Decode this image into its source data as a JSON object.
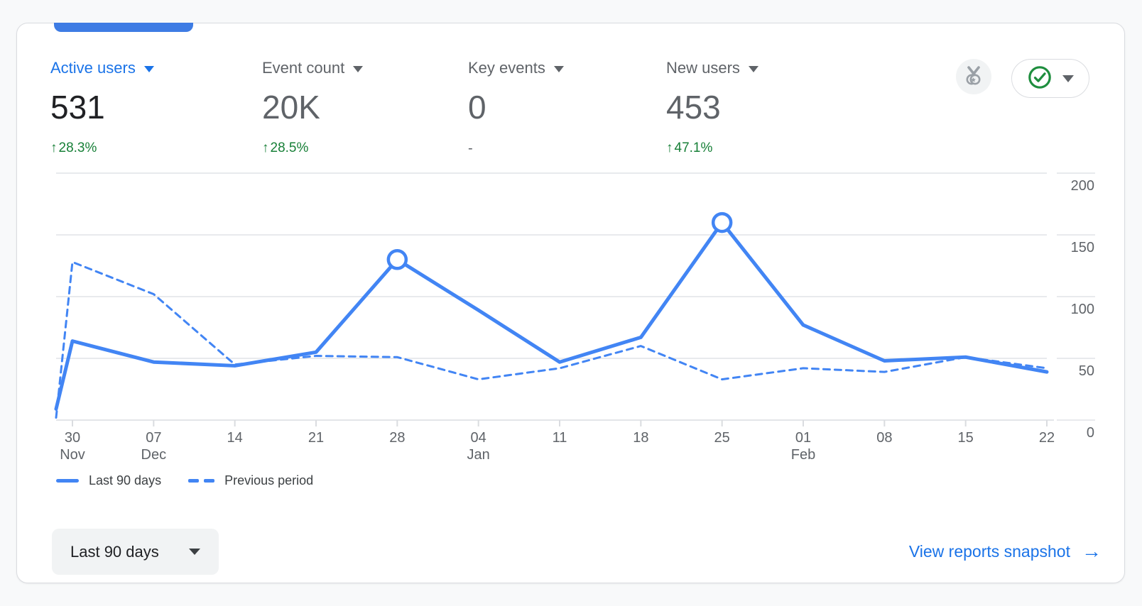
{
  "colors": {
    "page_bg": "#f8f9fa",
    "card_bg": "#ffffff",
    "border": "#dadce0",
    "tab_indicator": "#3e7ce4",
    "accent_blue": "#1a73e8",
    "chart_blue": "#4285f4",
    "positive_green": "#188038",
    "label_gray": "#5f6368",
    "value_dark": "#202124",
    "grid_gray": "#e8eaed"
  },
  "metrics": [
    {
      "label": "Active users",
      "value": "531",
      "delta_arrow": "↑",
      "delta": "28.3%",
      "selected": true
    },
    {
      "label": "Event count",
      "value": "20K",
      "delta_arrow": "↑",
      "delta": "28.5%",
      "selected": false
    },
    {
      "label": "Key events",
      "value": "0",
      "delta_arrow": "",
      "delta": "-",
      "selected": false
    },
    {
      "label": "New users",
      "value": "453",
      "delta_arrow": "↑",
      "delta": "47.1%",
      "selected": false
    }
  ],
  "chart_data": {
    "type": "line",
    "title": "",
    "xlabel": "",
    "ylabel": "",
    "ylim": [
      0,
      200
    ],
    "yticks": [
      0,
      50,
      100,
      150,
      200
    ],
    "grid": "horizontal",
    "legend_position": "bottom-left",
    "categories": [
      {
        "day": "30",
        "month": "Nov"
      },
      {
        "day": "07",
        "month": "Dec"
      },
      {
        "day": "14"
      },
      {
        "day": "21"
      },
      {
        "day": "28"
      },
      {
        "day": "04",
        "month": "Jan"
      },
      {
        "day": "11"
      },
      {
        "day": "18"
      },
      {
        "day": "25"
      },
      {
        "day": "01",
        "month": "Feb"
      },
      {
        "day": "08"
      },
      {
        "day": "15"
      },
      {
        "day": "22"
      }
    ],
    "edge_note": "first value of each series sits at the left chart edge, before the 30 Nov tick",
    "series": [
      {
        "name": "Last 90 days",
        "style": "solid",
        "values": [
          9,
          64,
          47,
          44,
          55,
          130,
          89,
          47,
          67,
          160,
          77,
          48,
          51,
          39
        ]
      },
      {
        "name": "Previous period",
        "style": "dashed",
        "values": [
          2,
          128,
          102,
          45,
          52,
          51,
          33,
          42,
          60,
          33,
          42,
          39,
          51,
          42
        ]
      }
    ],
    "markers": [
      {
        "series": 0,
        "index": 5,
        "value": 130
      },
      {
        "series": 0,
        "index": 9,
        "value": 160
      }
    ]
  },
  "legend": [
    {
      "label": "Last 90 days",
      "style": "solid"
    },
    {
      "label": "Previous period",
      "style": "dashed"
    }
  ],
  "toolbar": {
    "benchmark_icon": "medal-icon",
    "status_icon": "check-circle-icon"
  },
  "footer": {
    "date_range": "Last 90 days",
    "link": "View reports snapshot",
    "link_arrow": "→"
  }
}
